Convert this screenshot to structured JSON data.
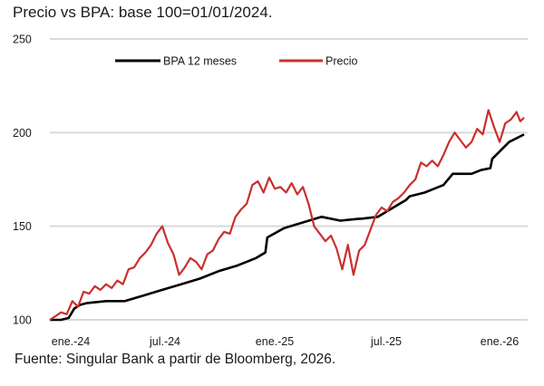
{
  "chart_data": {
    "type": "line",
    "title": "Precio vs BPA: base 100=01/01/2024.",
    "source": "Fuente: Singular Bank a partir de Bloomberg, 2026.",
    "xlabel": "",
    "ylabel": "",
    "ylim": [
      100,
      250
    ],
    "yticks": [
      100,
      150,
      200,
      250
    ],
    "xticks": [
      "ene.-24",
      "jul.-24",
      "ene.-25",
      "jul.-25",
      "ene.-26"
    ],
    "x_unit": "months since ene.-24",
    "xlim": [
      0,
      25.3
    ],
    "grid": true,
    "legend_position": "top-center",
    "series": [
      {
        "name": "BPA 12 meses",
        "color": "#000000",
        "x": [
          0,
          0.6,
          1.0,
          1.3,
          1.6,
          2.0,
          3.0,
          4.0,
          5.0,
          6.0,
          7.0,
          8.0,
          9.0,
          10.0,
          11.0,
          11.5,
          11.6,
          12.5,
          13.5,
          14.5,
          15.5,
          16.5,
          16.6,
          17.5,
          18.5,
          19.0,
          19.2,
          20.0,
          20.5,
          21.0,
          21.5,
          22.0,
          22.5,
          23.0,
          23.5,
          23.6,
          24.5,
          25.3
        ],
        "values": [
          100,
          100,
          101,
          106,
          108,
          109,
          110,
          110,
          113,
          116,
          119,
          122,
          126,
          129,
          133,
          136,
          144,
          149,
          152,
          155,
          153,
          154,
          154,
          155,
          161,
          164,
          166,
          168,
          170,
          172,
          178,
          178,
          178,
          180,
          181,
          186,
          195,
          199
        ]
      },
      {
        "name": "Precio",
        "color": "#c9302c",
        "x": [
          0,
          0.3,
          0.6,
          0.9,
          1.2,
          1.5,
          1.8,
          2.1,
          2.4,
          2.7,
          3.0,
          3.3,
          3.6,
          3.9,
          4.2,
          4.5,
          4.8,
          5.1,
          5.4,
          5.7,
          6.0,
          6.3,
          6.6,
          6.9,
          7.2,
          7.5,
          7.8,
          8.1,
          8.4,
          8.7,
          9.0,
          9.3,
          9.6,
          9.9,
          10.2,
          10.5,
          10.8,
          11.1,
          11.4,
          11.7,
          12.0,
          12.3,
          12.6,
          12.9,
          13.2,
          13.5,
          13.8,
          14.1,
          14.4,
          14.7,
          15.0,
          15.3,
          15.6,
          15.9,
          16.2,
          16.5,
          16.8,
          17.1,
          17.4,
          17.7,
          18.0,
          18.3,
          18.6,
          18.9,
          19.2,
          19.5,
          19.8,
          20.1,
          20.4,
          20.7,
          21.0,
          21.3,
          21.6,
          21.9,
          22.2,
          22.5,
          22.8,
          23.1,
          23.4,
          23.7,
          24.0,
          24.3,
          24.6,
          24.9,
          25.1,
          25.3
        ],
        "values": [
          100,
          102,
          104,
          103,
          110,
          107,
          115,
          114,
          118,
          116,
          119,
          117,
          121,
          119,
          127,
          128,
          133,
          136,
          140,
          146,
          150,
          141,
          135,
          124,
          128,
          133,
          131,
          127,
          135,
          137,
          143,
          147,
          146,
          155,
          159,
          162,
          172,
          174,
          168,
          176,
          170,
          171,
          168,
          173,
          167,
          171,
          162,
          150,
          146,
          142,
          145,
          138,
          127,
          140,
          124,
          137,
          140,
          148,
          156,
          160,
          158,
          163,
          165,
          168,
          172,
          175,
          184,
          182,
          185,
          182,
          188,
          195,
          200,
          196,
          192,
          195,
          202,
          199,
          212,
          203,
          195,
          205,
          207,
          211,
          206,
          208
        ]
      }
    ]
  }
}
